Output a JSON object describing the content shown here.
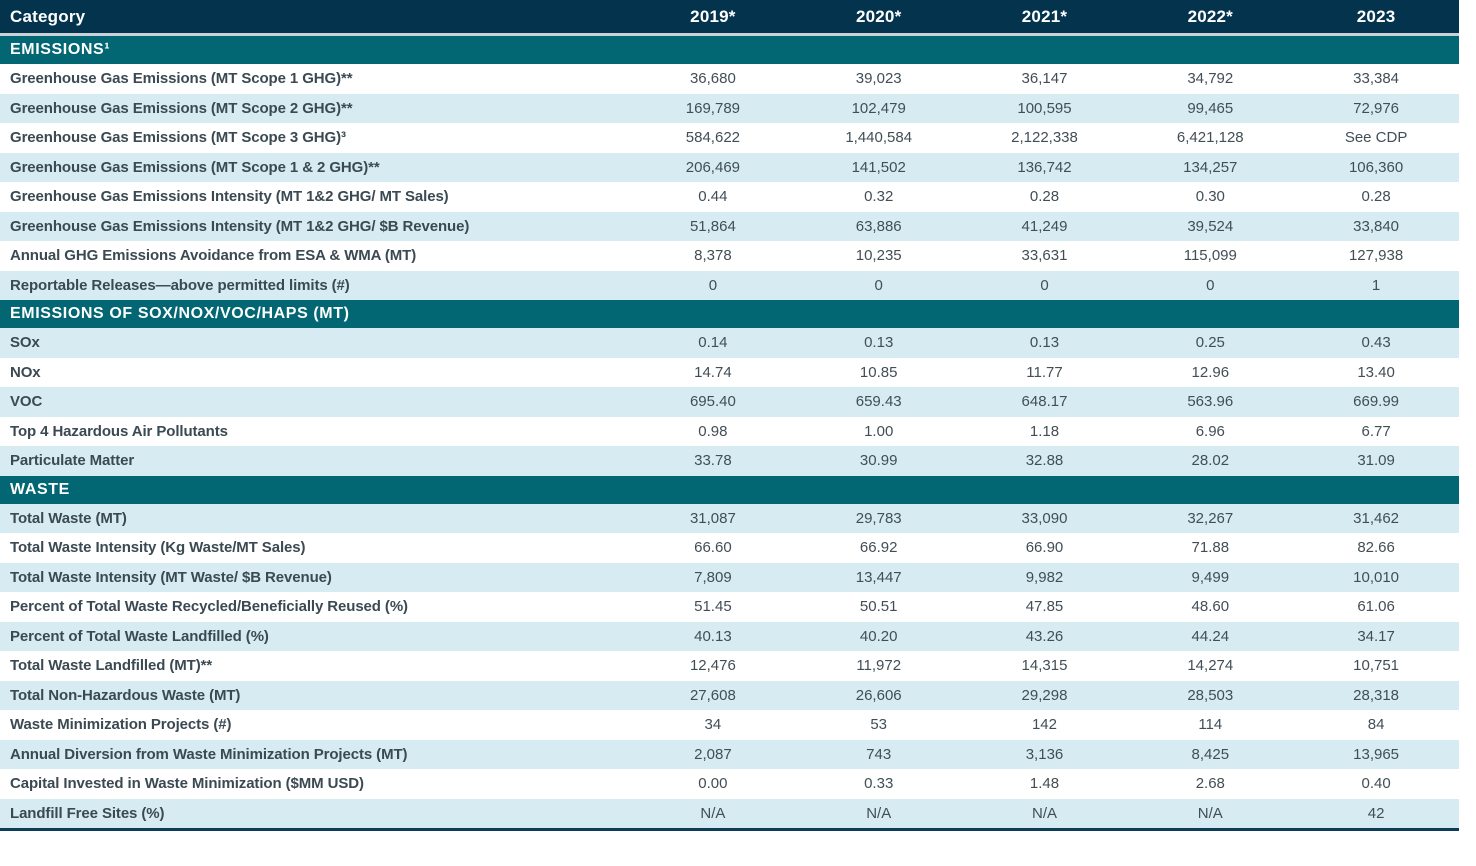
{
  "colors": {
    "header_bg": "#04344d",
    "section_bg": "#036673",
    "row_shaded_bg": "#d6ecf2",
    "row_plain_bg": "#ffffff",
    "header_text": "#ffffff",
    "label_text": "#3b4a52",
    "value_text": "#414e56",
    "bottom_border": "#0d3d57",
    "header_gap": "#c9d2d8"
  },
  "table": {
    "columns": [
      "Category",
      "2019*",
      "2020*",
      "2021*",
      "2022*",
      "2023"
    ],
    "sections": [
      {
        "title": "EMISSIONS¹",
        "first_row_shaded": false,
        "rows": [
          {
            "label": "Greenhouse Gas Emissions (MT Scope 1 GHG)**",
            "values": [
              "36,680",
              "39,023",
              "36,147",
              "34,792",
              "33,384"
            ]
          },
          {
            "label": "Greenhouse Gas Emissions (MT Scope 2 GHG)**",
            "values": [
              "169,789",
              "102,479",
              "100,595",
              "99,465",
              "72,976"
            ]
          },
          {
            "label": "Greenhouse Gas Emissions (MT Scope 3 GHG)³",
            "values": [
              "584,622",
              "1,440,584",
              "2,122,338",
              "6,421,128",
              "See CDP"
            ]
          },
          {
            "label": "Greenhouse Gas Emissions (MT Scope 1 & 2 GHG)**",
            "values": [
              "206,469",
              "141,502",
              "136,742",
              "134,257",
              "106,360"
            ]
          },
          {
            "label": "Greenhouse Gas Emissions Intensity (MT 1&2 GHG/ MT Sales)",
            "values": [
              "0.44",
              "0.32",
              "0.28",
              "0.30",
              "0.28"
            ]
          },
          {
            "label": "Greenhouse Gas Emissions Intensity (MT 1&2 GHG/ $B Revenue)",
            "values": [
              "51,864",
              "63,886",
              "41,249",
              "39,524",
              "33,840"
            ]
          },
          {
            "label": "Annual GHG Emissions Avoidance from ESA & WMA (MT)",
            "values": [
              "8,378",
              "10,235",
              "33,631",
              "115,099",
              "127,938"
            ]
          },
          {
            "label": "Reportable Releases—above permitted limits (#)",
            "values": [
              "0",
              "0",
              "0",
              "0",
              "1"
            ]
          }
        ]
      },
      {
        "title": "EMISSIONS OF SOX/NOX/VOC/HAPS (MT)",
        "first_row_shaded": true,
        "rows": [
          {
            "label": "SOx",
            "values": [
              "0.14",
              "0.13",
              "0.13",
              "0.25",
              "0.43"
            ]
          },
          {
            "label": "NOx",
            "values": [
              "14.74",
              "10.85",
              "11.77",
              "12.96",
              "13.40"
            ]
          },
          {
            "label": "VOC",
            "values": [
              "695.40",
              "659.43",
              "648.17",
              "563.96",
              "669.99"
            ]
          },
          {
            "label": "Top 4 Hazardous Air Pollutants",
            "values": [
              "0.98",
              "1.00",
              "1.18",
              "6.96",
              "6.77"
            ]
          },
          {
            "label": "Particulate Matter",
            "values": [
              "33.78",
              "30.99",
              "32.88",
              "28.02",
              "31.09"
            ]
          }
        ]
      },
      {
        "title": "WASTE",
        "first_row_shaded": true,
        "rows": [
          {
            "label": "Total Waste (MT)",
            "values": [
              "31,087",
              "29,783",
              "33,090",
              "32,267",
              "31,462"
            ]
          },
          {
            "label": "Total Waste Intensity (Kg Waste/MT Sales)",
            "values": [
              "66.60",
              "66.92",
              "66.90",
              "71.88",
              "82.66"
            ]
          },
          {
            "label": "Total Waste Intensity (MT Waste/ $B Revenue)",
            "values": [
              "7,809",
              "13,447",
              "9,982",
              "9,499",
              "10,010"
            ]
          },
          {
            "label": "Percent of Total Waste Recycled/Beneficially Reused (%)",
            "values": [
              "51.45",
              "50.51",
              "47.85",
              "48.60",
              "61.06"
            ]
          },
          {
            "label": "Percent of Total Waste Landfilled (%)",
            "values": [
              "40.13",
              "40.20",
              "43.26",
              "44.24",
              "34.17"
            ]
          },
          {
            "label": "Total Waste Landfilled (MT)**",
            "values": [
              "12,476",
              "11,972",
              "14,315",
              "14,274",
              "10,751"
            ]
          },
          {
            "label": "Total Non-Hazardous Waste (MT)",
            "values": [
              "27,608",
              "26,606",
              "29,298",
              "28,503",
              "28,318"
            ]
          },
          {
            "label": "Waste Minimization Projects (#)",
            "values": [
              "34",
              "53",
              "142",
              "114",
              "84"
            ]
          },
          {
            "label": "Annual Diversion from Waste Minimization Projects (MT)",
            "values": [
              "2,087",
              "743",
              "3,136",
              "8,425",
              "13,965"
            ]
          },
          {
            "label": "Capital Invested in Waste Minimization ($MM USD)",
            "values": [
              "0.00",
              "0.33",
              "1.48",
              "2.68",
              "0.40"
            ]
          },
          {
            "label": "Landfill Free Sites (%)",
            "values": [
              "N/A",
              "N/A",
              "N/A",
              "N/A",
              "42"
            ]
          }
        ]
      }
    ]
  }
}
